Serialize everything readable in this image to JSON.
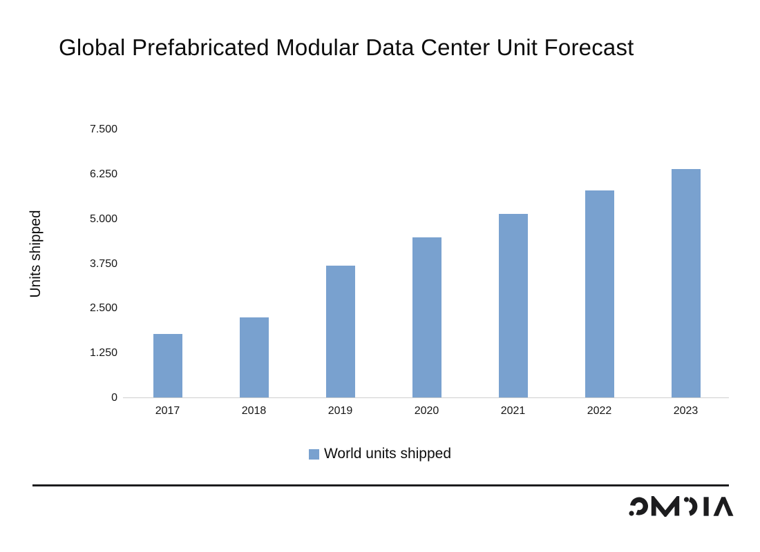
{
  "title": "Global Prefabricated Modular Data Center Unit Forecast",
  "chart_data": {
    "type": "bar",
    "title": "Global Prefabricated Modular Data Center Unit Forecast",
    "categories": [
      "2017",
      "2018",
      "2019",
      "2020",
      "2021",
      "2022",
      "2023"
    ],
    "values": [
      1800,
      2250,
      3700,
      4500,
      5150,
      5800,
      6400
    ],
    "series": [
      {
        "name": "World units shipped",
        "values": [
          1800,
          2250,
          3700,
          4500,
          5150,
          5800,
          6400
        ]
      }
    ],
    "xlabel": "",
    "ylabel": "Units shipped",
    "ylim": [
      0,
      7500
    ],
    "ytick_step": 1250,
    "ytick_labels": [
      "0",
      "1.250",
      "2.500",
      "3.750",
      "5.000",
      "6.250",
      "7.500"
    ],
    "grid": false,
    "legend_position": "bottom",
    "legend": [
      {
        "label": "World units shipped",
        "color": "#79a1cf"
      }
    ],
    "bar_color": "#79a1cf"
  },
  "footer": {
    "logo_text": "OMDIA"
  },
  "colors": {
    "bar": "#79a1cf",
    "axis_line": "#cfcfcf",
    "text": "#0d0d0d",
    "divider": "#1c1c1e",
    "background": "#ffffff"
  }
}
